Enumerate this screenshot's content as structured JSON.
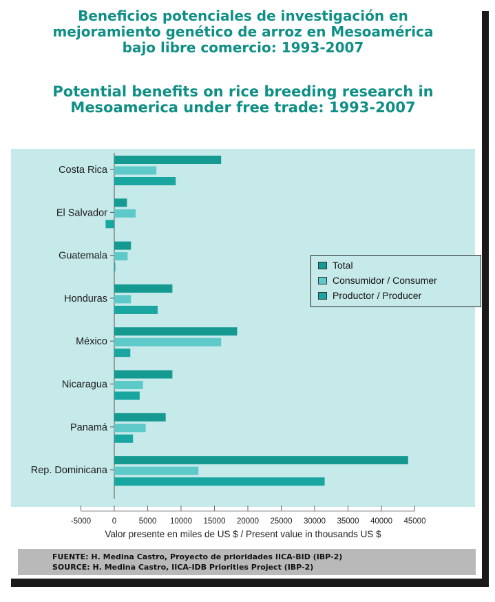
{
  "title_es": [
    "Beneficios potenciales de investigación en",
    "mejoramiento genético de arroz en Mesoamérica",
    "bajo libre comercio:  1993-2007"
  ],
  "title_en": [
    "Potential benefits on rice breeding research in",
    "Mesoamerica under free trade:  1993-2007"
  ],
  "source_es": "FUENTE:  H. Medina Castro, Proyecto de prioridades IICA-BID (IBP-2)",
  "source_en": "SOURCE:  H. Medina Castro, IICA-IDB Priorities Project (IBP-2)",
  "chart_data": {
    "type": "bar",
    "orientation": "horizontal",
    "categories": [
      "Costa Rica",
      "El Salvador",
      "Guatemala",
      "Honduras",
      "México",
      "Nicaragua",
      "Panamá",
      "Rep. Dominicana"
    ],
    "series": [
      {
        "name": "Total",
        "color": "#159a92",
        "values": [
          16000,
          1900,
          2500,
          8700,
          18400,
          8700,
          7700,
          44000
        ]
      },
      {
        "name": "Consumidor / Consumer",
        "color": "#5ec9c9",
        "values": [
          6300,
          3200,
          2000,
          2500,
          16000,
          4300,
          4700,
          12600
        ]
      },
      {
        "name": "Productor / Producer",
        "color": "#1aa6a0",
        "values": [
          9200,
          -1300,
          150,
          6500,
          2400,
          3800,
          2800,
          31500
        ]
      }
    ],
    "xlabel": "Valor presente en miles de US $  /  Present value in thousands US $",
    "xlim": [
      -5000,
      45000
    ],
    "xticks": [
      -5000,
      0,
      5000,
      10000,
      15000,
      20000,
      25000,
      30000,
      35000,
      40000,
      45000
    ],
    "xtick_labels": [
      "-5000",
      "0",
      "5000",
      "10000",
      "15000",
      "20000",
      "25000",
      "30000",
      "35000",
      "40000",
      "45000"
    ],
    "legend_position": "right"
  }
}
